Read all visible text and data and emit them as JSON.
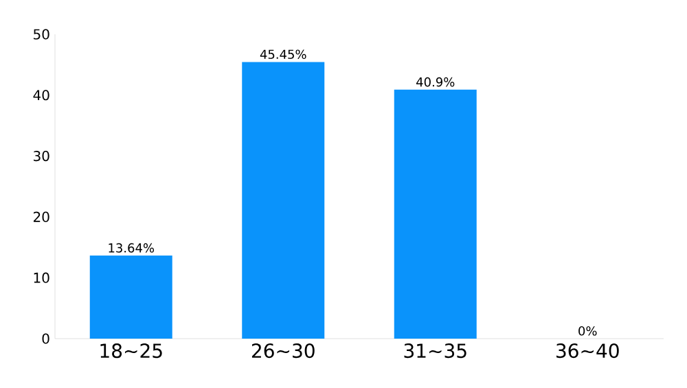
{
  "chart_data": {
    "type": "bar",
    "categories": [
      "18~25",
      "26~30",
      "31~35",
      "36~40"
    ],
    "values": [
      13.64,
      45.45,
      40.9,
      0
    ],
    "value_labels": [
      "13.64%",
      "45.45%",
      "40.9%",
      "0%"
    ],
    "color": "#0a93fb",
    "ylim": [
      0,
      50
    ],
    "yticks": [
      0,
      10,
      20,
      30,
      40,
      50
    ],
    "grid": false
  }
}
